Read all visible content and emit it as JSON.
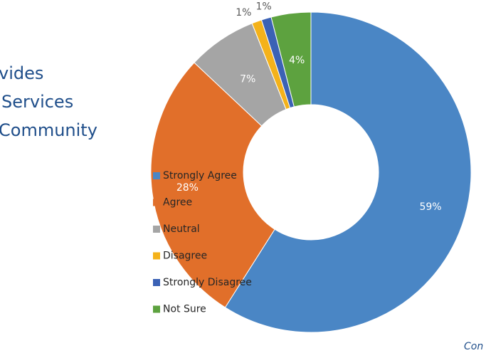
{
  "chart_data": {
    "type": "donut",
    "title_lines": [
      "vides",
      "Services",
      "Community"
    ],
    "footer": "Con",
    "categories": [
      "Strongly Agree",
      "Agree",
      "Neutral",
      "Disagree",
      "Strongly Disagree",
      "Not Sure"
    ],
    "values": [
      59,
      28,
      7,
      1,
      1,
      4
    ],
    "value_labels": [
      "59%",
      "28%",
      "7%",
      "1%",
      "1%",
      "4%"
    ],
    "colors": [
      "#4a86c5",
      "#e16f2a",
      "#a5a5a5",
      "#f4b21a",
      "#3b62b5",
      "#5da23f"
    ],
    "legend": "left"
  }
}
